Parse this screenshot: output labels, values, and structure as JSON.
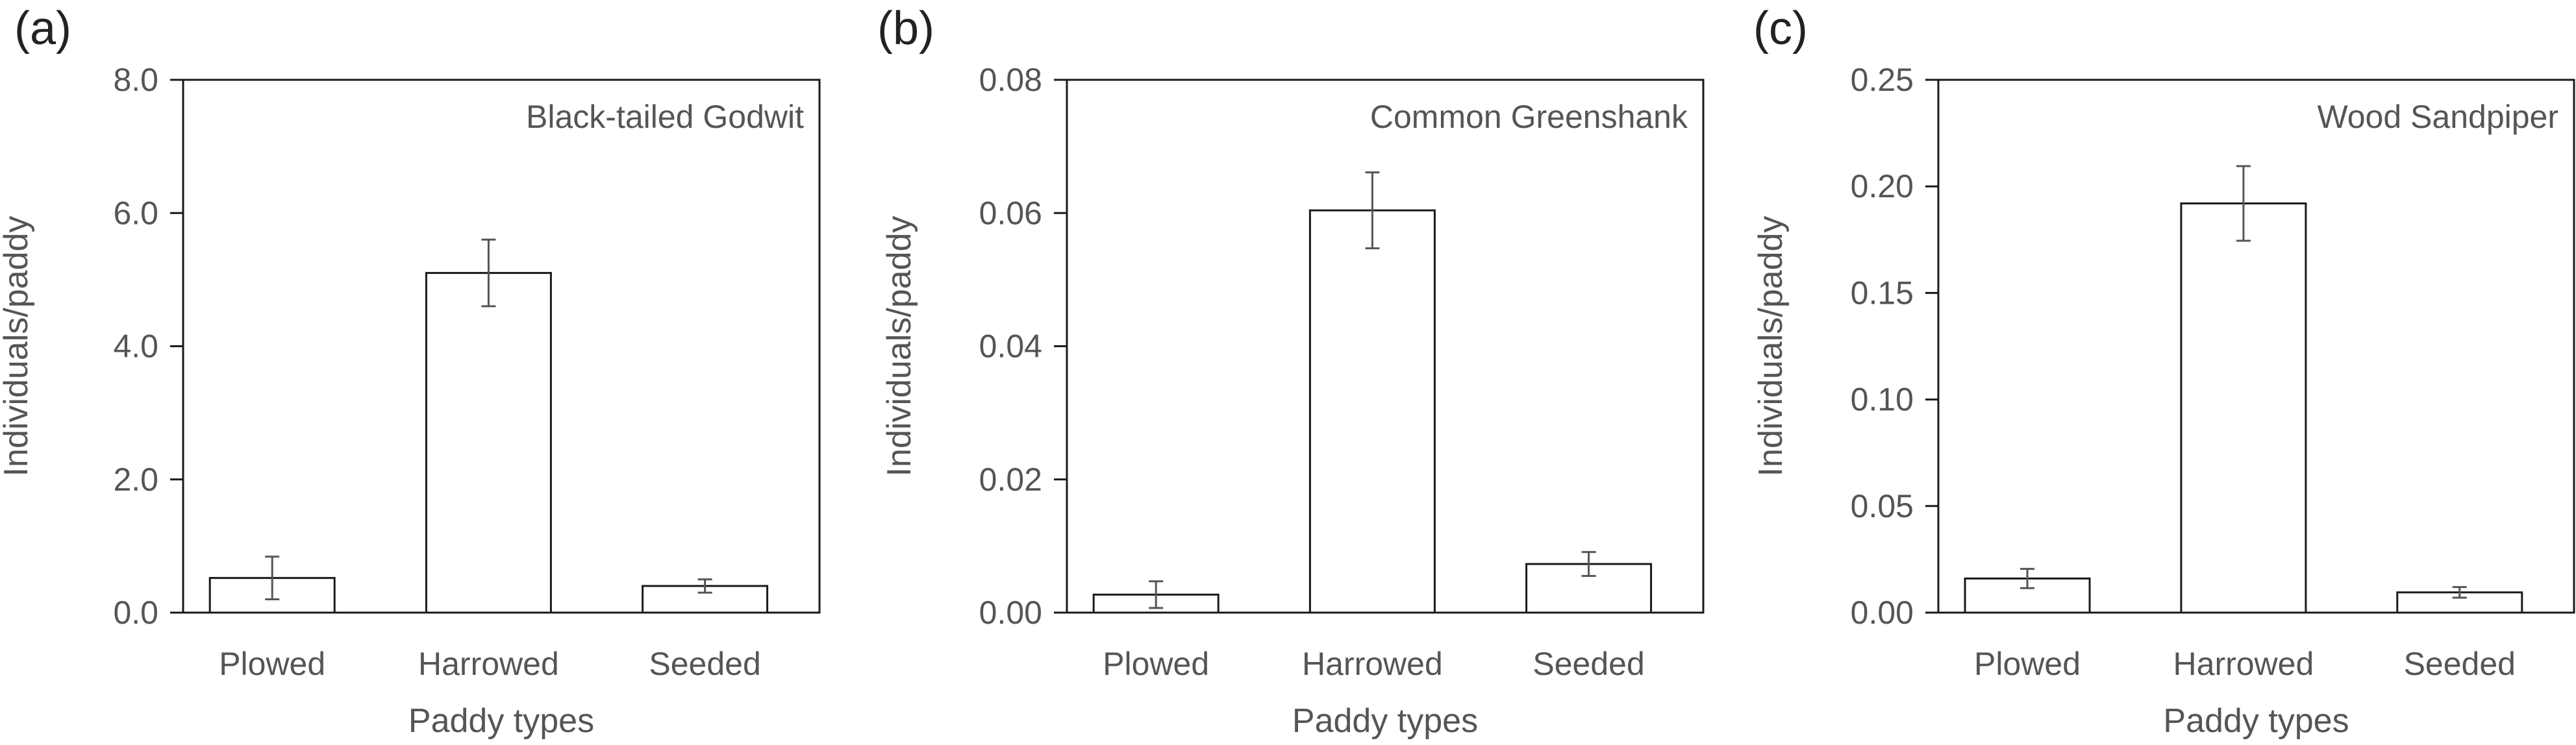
{
  "chart_data": [
    {
      "panel": "(a)",
      "type": "bar",
      "title": "Black-tailed Godwit",
      "xlabel": "Paddy types",
      "ylabel": "Individuals/paddy",
      "categories": [
        "Plowed",
        "Harrowed",
        "Seeded"
      ],
      "values": [
        0.52,
        5.1,
        0.4
      ],
      "errors": [
        0.32,
        0.5,
        0.1
      ],
      "ylim": [
        0,
        8.0
      ],
      "yticks": [
        "0.0",
        "2.0",
        "4.0",
        "6.0",
        "8.0"
      ],
      "ytick_values": [
        0,
        2,
        4,
        6,
        8
      ],
      "grid": false
    },
    {
      "panel": "(b)",
      "type": "bar",
      "title": "Common Greenshank",
      "xlabel": "Paddy types",
      "ylabel": "Individuals/paddy",
      "categories": [
        "Plowed",
        "Harrowed",
        "Seeded"
      ],
      "values": [
        0.0027,
        0.0604,
        0.0073
      ],
      "errors": [
        0.002,
        0.0057,
        0.0018
      ],
      "ylim": [
        0,
        0.08
      ],
      "yticks": [
        "0.00",
        "0.02",
        "0.04",
        "0.06",
        "0.08"
      ],
      "ytick_values": [
        0,
        0.02,
        0.04,
        0.06,
        0.08
      ],
      "grid": false
    },
    {
      "panel": "(c)",
      "type": "bar",
      "title": "Wood Sandpiper",
      "xlabel": "Paddy types",
      "ylabel": "Individuals/paddy",
      "categories": [
        "Plowed",
        "Harrowed",
        "Seeded"
      ],
      "values": [
        0.016,
        0.192,
        0.0095
      ],
      "errors": [
        0.0045,
        0.0175,
        0.0025
      ],
      "ylim": [
        0,
        0.25
      ],
      "yticks": [
        "0.00",
        "0.05",
        "0.10",
        "0.15",
        "0.20",
        "0.25"
      ],
      "ytick_values": [
        0,
        0.05,
        0.1,
        0.15,
        0.2,
        0.25
      ],
      "grid": false
    }
  ]
}
